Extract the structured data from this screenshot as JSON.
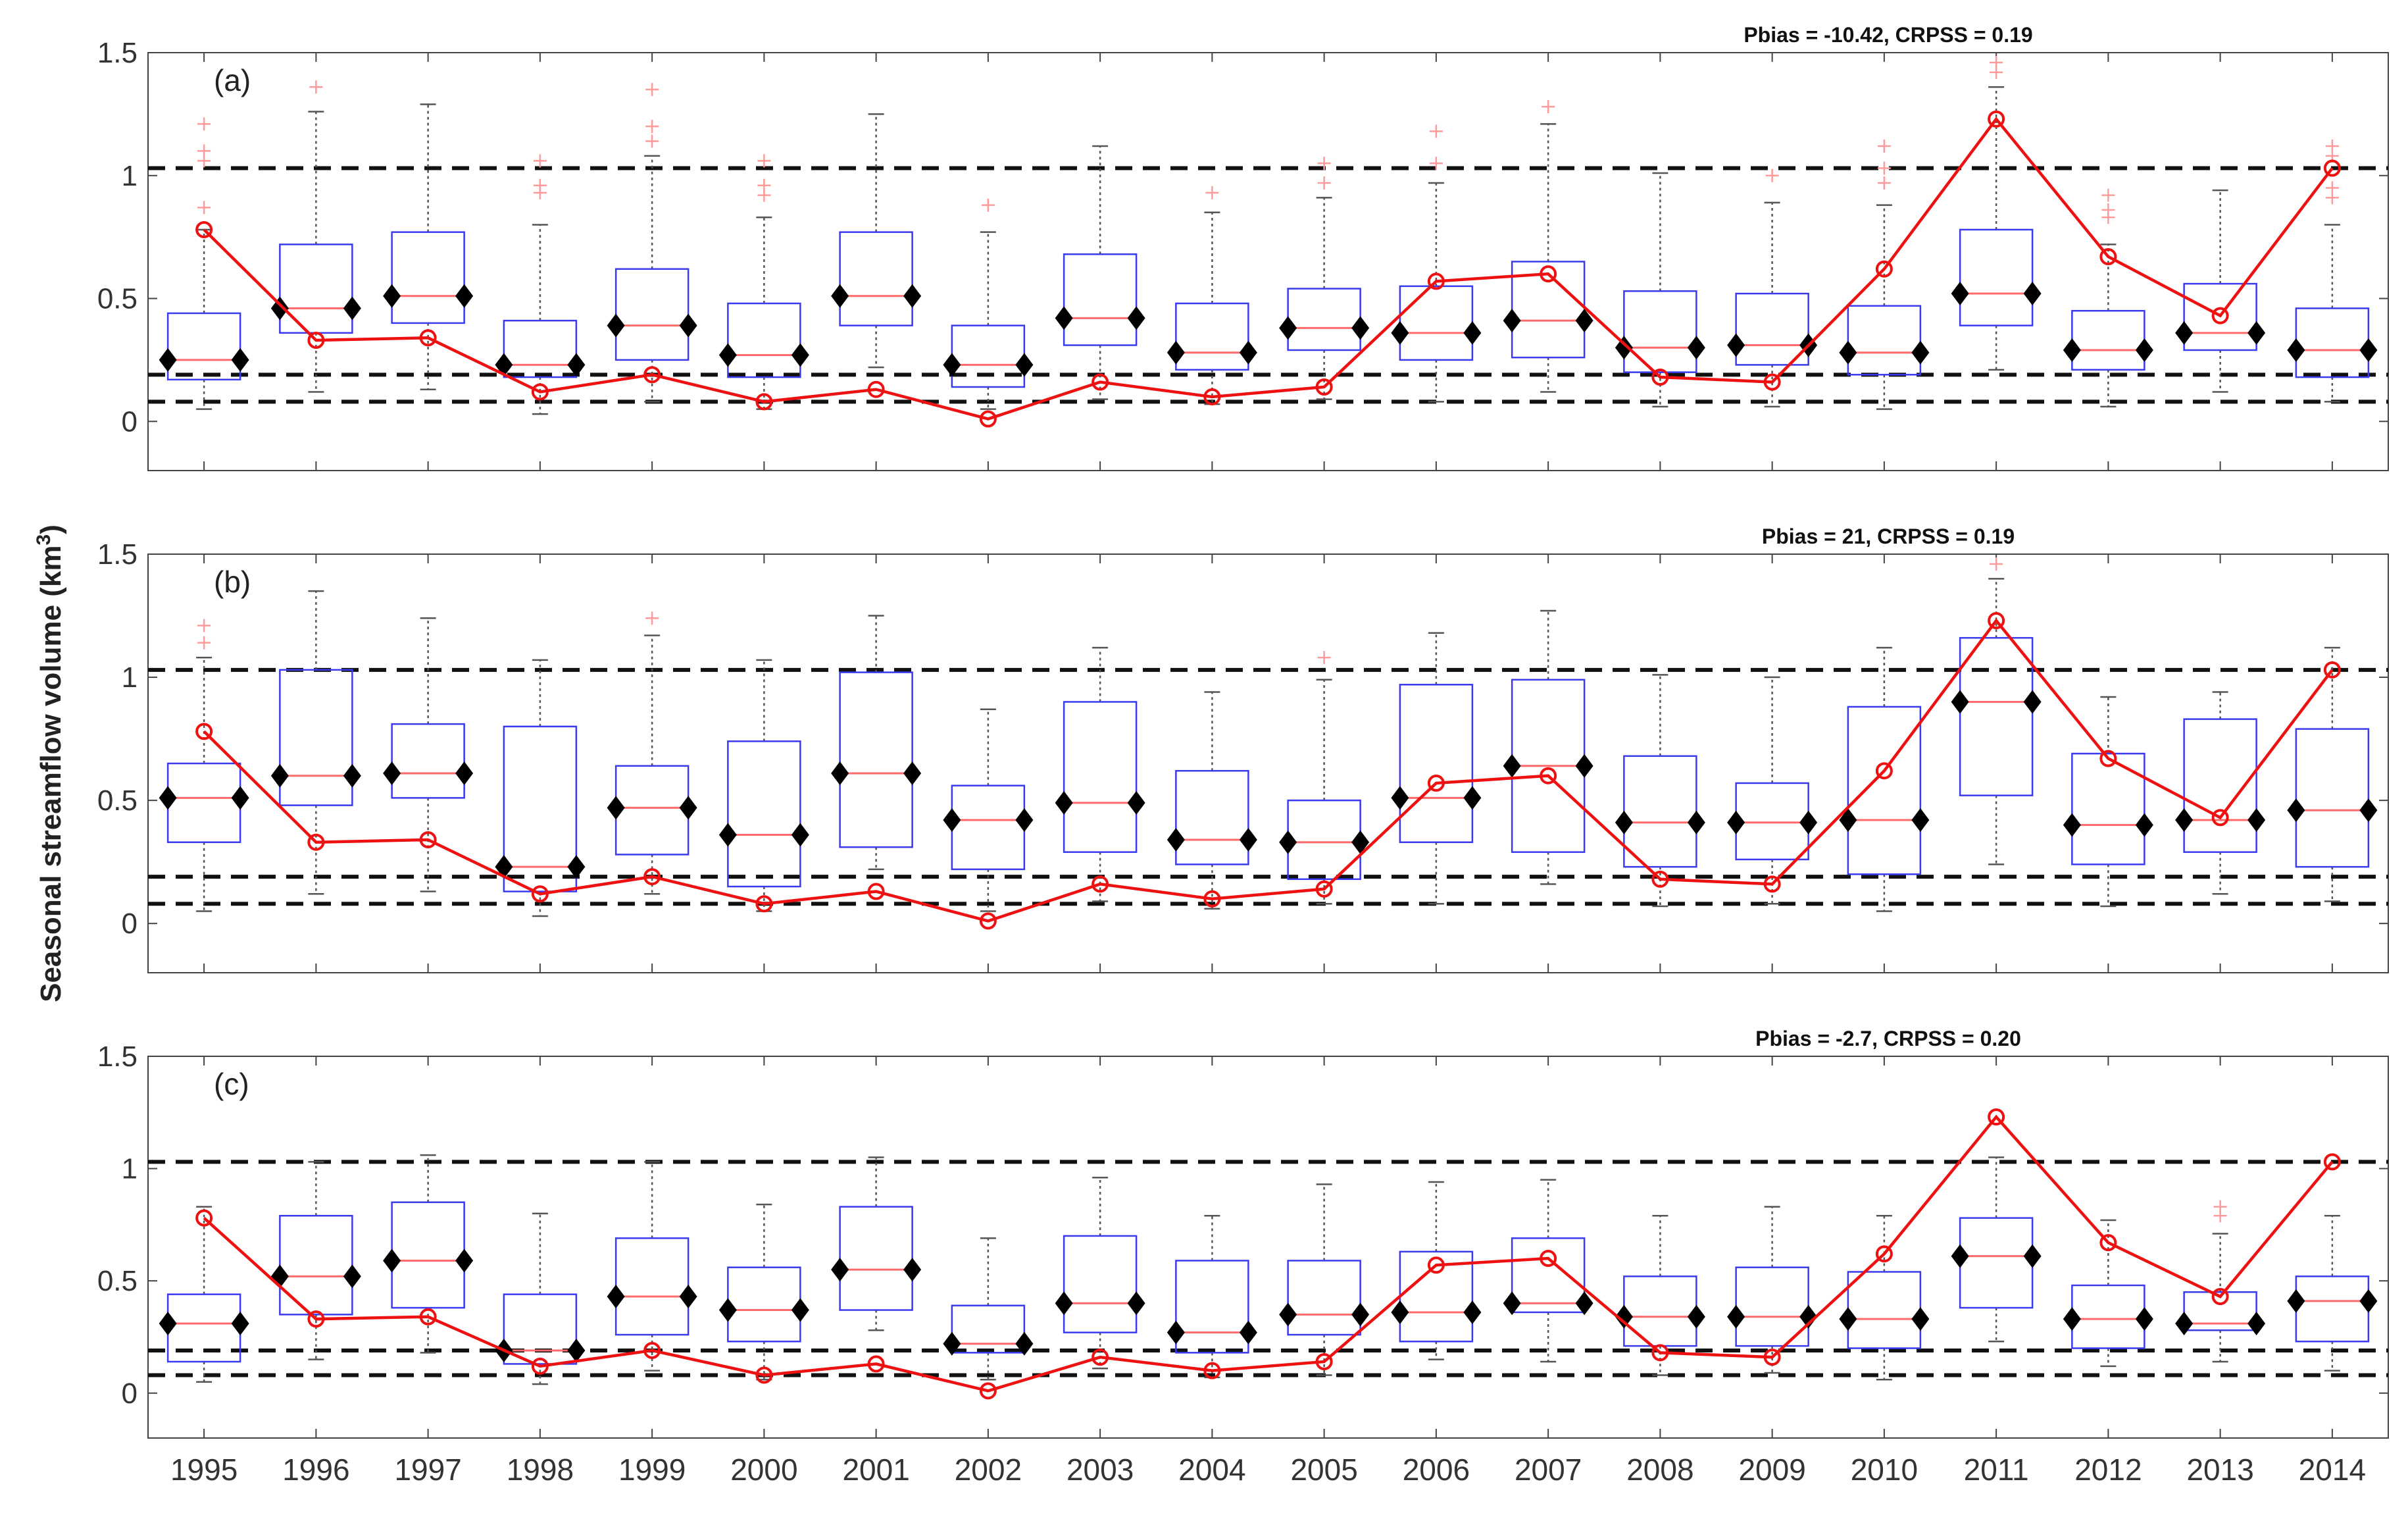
{
  "figure": {
    "ylabel": "Seasonal streamflow volume (km",
    "ylabel_sup": "3",
    "ylabel_close": ")"
  },
  "chart_data": [
    {
      "type": "box",
      "panel_label": "(a)",
      "metrics": "Pbias = -10.42, CRPSS = 0.19",
      "categories": [
        "1995",
        "1996",
        "1997",
        "1998",
        "1999",
        "2000",
        "2001",
        "2002",
        "2003",
        "2004",
        "2005",
        "2006",
        "2007",
        "2008",
        "2009",
        "2010",
        "2011",
        "2012",
        "2013",
        "2014"
      ],
      "ylim": [
        -0.2,
        1.5
      ],
      "yticks": [
        "0",
        "0.5",
        "1",
        "1.5"
      ],
      "reference_lines": [
        1.03,
        0.19,
        0.08
      ],
      "observed": [
        0.78,
        0.33,
        0.34,
        0.12,
        0.19,
        0.08,
        0.13,
        0.01,
        0.16,
        0.1,
        0.14,
        0.57,
        0.6,
        0.18,
        0.16,
        0.62,
        1.23,
        0.67,
        0.43,
        1.03
      ],
      "boxes": [
        {
          "q1": 0.17,
          "median": 0.25,
          "q3": 0.44,
          "lo": 0.05,
          "hi": 0.78,
          "marker": 0.25,
          "outliers": [
            0.87,
            1.06,
            1.1,
            1.21
          ]
        },
        {
          "q1": 0.36,
          "median": 0.46,
          "q3": 0.72,
          "lo": 0.12,
          "hi": 1.26,
          "marker": 0.46,
          "outliers": [
            1.36
          ]
        },
        {
          "q1": 0.4,
          "median": 0.51,
          "q3": 0.77,
          "lo": 0.13,
          "hi": 1.29,
          "marker": 0.51,
          "outliers": []
        },
        {
          "q1": 0.18,
          "median": 0.23,
          "q3": 0.41,
          "lo": 0.03,
          "hi": 0.8,
          "marker": 0.23,
          "outliers": [
            0.93,
            0.96,
            1.06
          ]
        },
        {
          "q1": 0.25,
          "median": 0.39,
          "q3": 0.62,
          "lo": 0.08,
          "hi": 1.08,
          "marker": 0.39,
          "outliers": [
            1.14,
            1.2,
            1.35
          ]
        },
        {
          "q1": 0.18,
          "median": 0.27,
          "q3": 0.48,
          "lo": 0.05,
          "hi": 0.83,
          "marker": 0.27,
          "outliers": [
            0.92,
            0.96,
            1.06
          ]
        },
        {
          "q1": 0.39,
          "median": 0.51,
          "q3": 0.77,
          "lo": 0.22,
          "hi": 1.25,
          "marker": 0.51,
          "outliers": []
        },
        {
          "q1": 0.14,
          "median": 0.23,
          "q3": 0.39,
          "lo": 0.05,
          "hi": 0.77,
          "marker": 0.23,
          "outliers": [
            0.88
          ]
        },
        {
          "q1": 0.31,
          "median": 0.42,
          "q3": 0.68,
          "lo": 0.09,
          "hi": 1.12,
          "marker": 0.42,
          "outliers": []
        },
        {
          "q1": 0.21,
          "median": 0.28,
          "q3": 0.48,
          "lo": 0.07,
          "hi": 0.85,
          "marker": 0.28,
          "outliers": [
            0.93
          ]
        },
        {
          "q1": 0.29,
          "median": 0.38,
          "q3": 0.54,
          "lo": 0.09,
          "hi": 0.91,
          "marker": 0.38,
          "outliers": [
            0.97,
            1.05
          ]
        },
        {
          "q1": 0.25,
          "median": 0.36,
          "q3": 0.55,
          "lo": 0.08,
          "hi": 0.97,
          "marker": 0.36,
          "outliers": [
            1.05,
            1.18
          ]
        },
        {
          "q1": 0.26,
          "median": 0.41,
          "q3": 0.65,
          "lo": 0.12,
          "hi": 1.21,
          "marker": 0.41,
          "outliers": [
            1.28
          ]
        },
        {
          "q1": 0.2,
          "median": 0.3,
          "q3": 0.53,
          "lo": 0.06,
          "hi": 1.01,
          "marker": 0.3,
          "outliers": []
        },
        {
          "q1": 0.23,
          "median": 0.31,
          "q3": 0.52,
          "lo": 0.06,
          "hi": 0.89,
          "marker": 0.31,
          "outliers": [
            1.0
          ]
        },
        {
          "q1": 0.19,
          "median": 0.28,
          "q3": 0.47,
          "lo": 0.05,
          "hi": 0.88,
          "marker": 0.28,
          "outliers": [
            0.97,
            1.03,
            1.12
          ]
        },
        {
          "q1": 0.39,
          "median": 0.52,
          "q3": 0.78,
          "lo": 0.21,
          "hi": 1.36,
          "marker": 0.52,
          "outliers": [
            1.42,
            1.46
          ]
        },
        {
          "q1": 0.21,
          "median": 0.29,
          "q3": 0.45,
          "lo": 0.06,
          "hi": 0.72,
          "marker": 0.29,
          "outliers": [
            0.83,
            0.86,
            0.92
          ]
        },
        {
          "q1": 0.29,
          "median": 0.36,
          "q3": 0.56,
          "lo": 0.12,
          "hi": 0.94,
          "marker": 0.36,
          "outliers": []
        },
        {
          "q1": 0.18,
          "median": 0.29,
          "q3": 0.46,
          "lo": 0.08,
          "hi": 0.8,
          "marker": 0.29,
          "outliers": [
            0.91,
            0.95,
            1.08,
            1.12
          ]
        }
      ]
    },
    {
      "type": "box",
      "panel_label": "(b)",
      "metrics": "Pbias = 21, CRPSS = 0.19",
      "categories": [
        "1995",
        "1996",
        "1997",
        "1998",
        "1999",
        "2000",
        "2001",
        "2002",
        "2003",
        "2004",
        "2005",
        "2006",
        "2007",
        "2008",
        "2009",
        "2010",
        "2011",
        "2012",
        "2013",
        "2014"
      ],
      "ylim": [
        -0.2,
        1.5
      ],
      "yticks": [
        "0",
        "0.5",
        "1",
        "1.5"
      ],
      "reference_lines": [
        1.03,
        0.19,
        0.08
      ],
      "observed": [
        0.78,
        0.33,
        0.34,
        0.12,
        0.19,
        0.08,
        0.13,
        0.01,
        0.16,
        0.1,
        0.14,
        0.57,
        0.6,
        0.18,
        0.16,
        0.62,
        1.23,
        0.67,
        0.43,
        1.03
      ],
      "boxes": [
        {
          "q1": 0.33,
          "median": 0.51,
          "q3": 0.65,
          "lo": 0.05,
          "hi": 1.08,
          "marker": 0.51,
          "outliers": [
            1.14,
            1.21
          ]
        },
        {
          "q1": 0.48,
          "median": 0.6,
          "q3": 1.03,
          "lo": 0.12,
          "hi": 1.35,
          "marker": 0.6,
          "outliers": []
        },
        {
          "q1": 0.51,
          "median": 0.61,
          "q3": 0.81,
          "lo": 0.13,
          "hi": 1.24,
          "marker": 0.61,
          "outliers": []
        },
        {
          "q1": 0.13,
          "median": 0.23,
          "q3": 0.8,
          "lo": 0.03,
          "hi": 1.07,
          "marker": 0.23,
          "outliers": []
        },
        {
          "q1": 0.28,
          "median": 0.47,
          "q3": 0.64,
          "lo": 0.12,
          "hi": 1.17,
          "marker": 0.47,
          "outliers": [
            1.24
          ]
        },
        {
          "q1": 0.15,
          "median": 0.36,
          "q3": 0.74,
          "lo": 0.05,
          "hi": 1.07,
          "marker": 0.36,
          "outliers": []
        },
        {
          "q1": 0.31,
          "median": 0.61,
          "q3": 1.02,
          "lo": 0.22,
          "hi": 1.25,
          "marker": 0.61,
          "outliers": []
        },
        {
          "q1": 0.22,
          "median": 0.42,
          "q3": 0.56,
          "lo": 0.05,
          "hi": 0.87,
          "marker": 0.42,
          "outliers": []
        },
        {
          "q1": 0.29,
          "median": 0.49,
          "q3": 0.9,
          "lo": 0.09,
          "hi": 1.12,
          "marker": 0.49,
          "outliers": []
        },
        {
          "q1": 0.24,
          "median": 0.34,
          "q3": 0.62,
          "lo": 0.06,
          "hi": 0.94,
          "marker": 0.34,
          "outliers": []
        },
        {
          "q1": 0.18,
          "median": 0.33,
          "q3": 0.5,
          "lo": 0.08,
          "hi": 0.99,
          "marker": 0.33,
          "outliers": [
            1.08
          ]
        },
        {
          "q1": 0.33,
          "median": 0.51,
          "q3": 0.97,
          "lo": 0.08,
          "hi": 1.18,
          "marker": 0.51,
          "outliers": []
        },
        {
          "q1": 0.29,
          "median": 0.64,
          "q3": 0.99,
          "lo": 0.16,
          "hi": 1.27,
          "marker": 0.64,
          "outliers": []
        },
        {
          "q1": 0.23,
          "median": 0.41,
          "q3": 0.68,
          "lo": 0.07,
          "hi": 1.01,
          "marker": 0.41,
          "outliers": []
        },
        {
          "q1": 0.26,
          "median": 0.41,
          "q3": 0.57,
          "lo": 0.08,
          "hi": 1.0,
          "marker": 0.41,
          "outliers": []
        },
        {
          "q1": 0.2,
          "median": 0.42,
          "q3": 0.88,
          "lo": 0.05,
          "hi": 1.12,
          "marker": 0.42,
          "outliers": []
        },
        {
          "q1": 0.52,
          "median": 0.9,
          "q3": 1.16,
          "lo": 0.24,
          "hi": 1.4,
          "marker": 0.9,
          "outliers": [
            1.46
          ]
        },
        {
          "q1": 0.24,
          "median": 0.4,
          "q3": 0.69,
          "lo": 0.07,
          "hi": 0.92,
          "marker": 0.4,
          "outliers": []
        },
        {
          "q1": 0.29,
          "median": 0.42,
          "q3": 0.83,
          "lo": 0.12,
          "hi": 0.94,
          "marker": 0.42,
          "outliers": []
        },
        {
          "q1": 0.23,
          "median": 0.46,
          "q3": 0.79,
          "lo": 0.09,
          "hi": 1.12,
          "marker": 0.46,
          "outliers": []
        }
      ]
    },
    {
      "type": "box",
      "panel_label": "(c)",
      "metrics": "Pbias = -2.7, CRPSS = 0.20",
      "categories": [
        "1995",
        "1996",
        "1997",
        "1998",
        "1999",
        "2000",
        "2001",
        "2002",
        "2003",
        "2004",
        "2005",
        "2006",
        "2007",
        "2008",
        "2009",
        "2010",
        "2011",
        "2012",
        "2013",
        "2014"
      ],
      "ylim": [
        -0.2,
        1.5
      ],
      "yticks": [
        "0",
        "0.5",
        "1",
        "1.5"
      ],
      "reference_lines": [
        1.03,
        0.19,
        0.08
      ],
      "observed": [
        0.78,
        0.33,
        0.34,
        0.12,
        0.19,
        0.08,
        0.13,
        0.01,
        0.16,
        0.1,
        0.14,
        0.57,
        0.6,
        0.18,
        0.16,
        0.62,
        1.23,
        0.67,
        0.43,
        1.03
      ],
      "boxes": [
        {
          "q1": 0.14,
          "median": 0.31,
          "q3": 0.44,
          "lo": 0.05,
          "hi": 0.83,
          "marker": 0.31,
          "outliers": []
        },
        {
          "q1": 0.35,
          "median": 0.52,
          "q3": 0.79,
          "lo": 0.15,
          "hi": 1.03,
          "marker": 0.52,
          "outliers": []
        },
        {
          "q1": 0.38,
          "median": 0.59,
          "q3": 0.85,
          "lo": 0.18,
          "hi": 1.06,
          "marker": 0.59,
          "outliers": []
        },
        {
          "q1": 0.13,
          "median": 0.19,
          "q3": 0.44,
          "lo": 0.04,
          "hi": 0.8,
          "marker": 0.19,
          "outliers": []
        },
        {
          "q1": 0.26,
          "median": 0.43,
          "q3": 0.69,
          "lo": 0.1,
          "hi": 1.03,
          "marker": 0.43,
          "outliers": []
        },
        {
          "q1": 0.23,
          "median": 0.37,
          "q3": 0.56,
          "lo": 0.06,
          "hi": 0.84,
          "marker": 0.37,
          "outliers": []
        },
        {
          "q1": 0.37,
          "median": 0.55,
          "q3": 0.83,
          "lo": 0.28,
          "hi": 1.05,
          "marker": 0.55,
          "outliers": []
        },
        {
          "q1": 0.18,
          "median": 0.22,
          "q3": 0.39,
          "lo": 0.06,
          "hi": 0.69,
          "marker": 0.22,
          "outliers": []
        },
        {
          "q1": 0.27,
          "median": 0.4,
          "q3": 0.7,
          "lo": 0.11,
          "hi": 0.96,
          "marker": 0.4,
          "outliers": []
        },
        {
          "q1": 0.18,
          "median": 0.27,
          "q3": 0.59,
          "lo": 0.07,
          "hi": 0.79,
          "marker": 0.27,
          "outliers": []
        },
        {
          "q1": 0.26,
          "median": 0.35,
          "q3": 0.59,
          "lo": 0.08,
          "hi": 0.93,
          "marker": 0.35,
          "outliers": []
        },
        {
          "q1": 0.23,
          "median": 0.36,
          "q3": 0.63,
          "lo": 0.15,
          "hi": 0.94,
          "marker": 0.36,
          "outliers": []
        },
        {
          "q1": 0.36,
          "median": 0.4,
          "q3": 0.69,
          "lo": 0.14,
          "hi": 0.95,
          "marker": 0.4,
          "outliers": []
        },
        {
          "q1": 0.21,
          "median": 0.34,
          "q3": 0.52,
          "lo": 0.08,
          "hi": 0.79,
          "marker": 0.34,
          "outliers": []
        },
        {
          "q1": 0.21,
          "median": 0.34,
          "q3": 0.56,
          "lo": 0.09,
          "hi": 0.83,
          "marker": 0.34,
          "outliers": []
        },
        {
          "q1": 0.2,
          "median": 0.33,
          "q3": 0.54,
          "lo": 0.06,
          "hi": 0.79,
          "marker": 0.33,
          "outliers": []
        },
        {
          "q1": 0.38,
          "median": 0.61,
          "q3": 0.78,
          "lo": 0.23,
          "hi": 1.05,
          "marker": 0.61,
          "outliers": []
        },
        {
          "q1": 0.2,
          "median": 0.33,
          "q3": 0.48,
          "lo": 0.12,
          "hi": 0.77,
          "marker": 0.33,
          "outliers": []
        },
        {
          "q1": 0.28,
          "median": 0.31,
          "q3": 0.45,
          "lo": 0.14,
          "hi": 0.71,
          "marker": 0.31,
          "outliers": [
            0.79,
            0.83
          ]
        },
        {
          "q1": 0.23,
          "median": 0.41,
          "q3": 0.52,
          "lo": 0.1,
          "hi": 0.79,
          "marker": 0.41,
          "outliers": []
        }
      ]
    }
  ],
  "colors": {
    "box": "#3a3af0",
    "median": "#ff6a6a",
    "whisker": "#555555",
    "outlier": "#ff9a9a",
    "observed": "#ee1111",
    "reference": "#111111",
    "marker": "#000000"
  }
}
